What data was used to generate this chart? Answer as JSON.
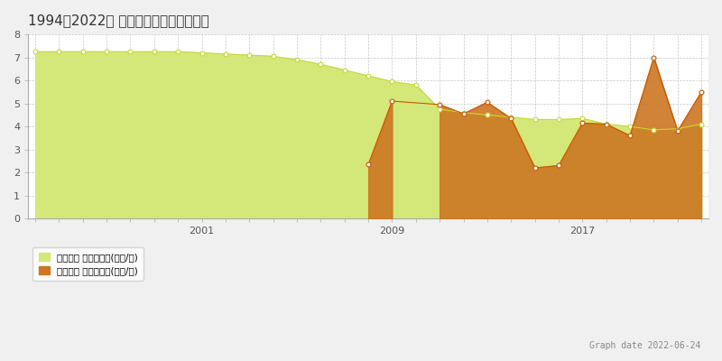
{
  "title": "1994～2022年 帯広市大空町の地価推移",
  "ylabel": "",
  "xlabel": "",
  "ylim": [
    0,
    8
  ],
  "yticks": [
    0,
    1,
    2,
    3,
    4,
    5,
    6,
    7,
    8
  ],
  "xtick_years": [
    2001,
    2009,
    2017
  ],
  "legend_label_1": "地価公示 平均坪単価(万円/坪)",
  "legend_label_2": "取引価格 平均坪単価(万円/坪)",
  "graph_date": "Graph date 2022-06-24",
  "bg_color": "#f0f0f0",
  "plot_bg_color": "#ffffff",
  "grid_color": "#c8c8c8",
  "color_chika": "#d4e87a",
  "color_chika_line": "#c8d832",
  "color_torihiki": "#cc7722",
  "color_torihiki_line": "#cc5500",
  "chika_years": [
    1994,
    1995,
    1996,
    1997,
    1998,
    1999,
    2000,
    2001,
    2002,
    2003,
    2004,
    2005,
    2006,
    2007,
    2008,
    2009,
    2010,
    2011,
    2012,
    2013,
    2014,
    2015,
    2016,
    2017,
    2018,
    2019,
    2020,
    2021,
    2022
  ],
  "chika_values": [
    7.25,
    7.25,
    7.25,
    7.25,
    7.25,
    7.25,
    7.25,
    7.2,
    7.15,
    7.1,
    7.05,
    6.9,
    6.7,
    6.45,
    6.2,
    5.95,
    5.8,
    4.75,
    4.6,
    4.5,
    4.4,
    4.3,
    4.3,
    4.35,
    4.1,
    4.0,
    3.85,
    3.9,
    4.1
  ],
  "torihiki_years": [
    2008,
    2009,
    2011,
    2012,
    2013,
    2014,
    2015,
    2016,
    2017,
    2018,
    2019,
    2020,
    2021,
    2022
  ],
  "torihiki_values": [
    2.35,
    5.1,
    4.95,
    4.55,
    5.05,
    4.35,
    2.2,
    2.3,
    4.15,
    4.1,
    3.6,
    7.0,
    3.8,
    5.5
  ],
  "torihiki_years_all": [
    2008,
    2009,
    2010,
    2011,
    2012,
    2013,
    2014,
    2015,
    2016,
    2017,
    2018,
    2019,
    2020,
    2021,
    2022
  ],
  "torihiki_values_all": [
    2.35,
    5.1,
    null,
    4.95,
    4.55,
    5.05,
    4.35,
    2.2,
    2.3,
    4.15,
    4.1,
    3.6,
    7.0,
    3.8,
    5.5
  ]
}
